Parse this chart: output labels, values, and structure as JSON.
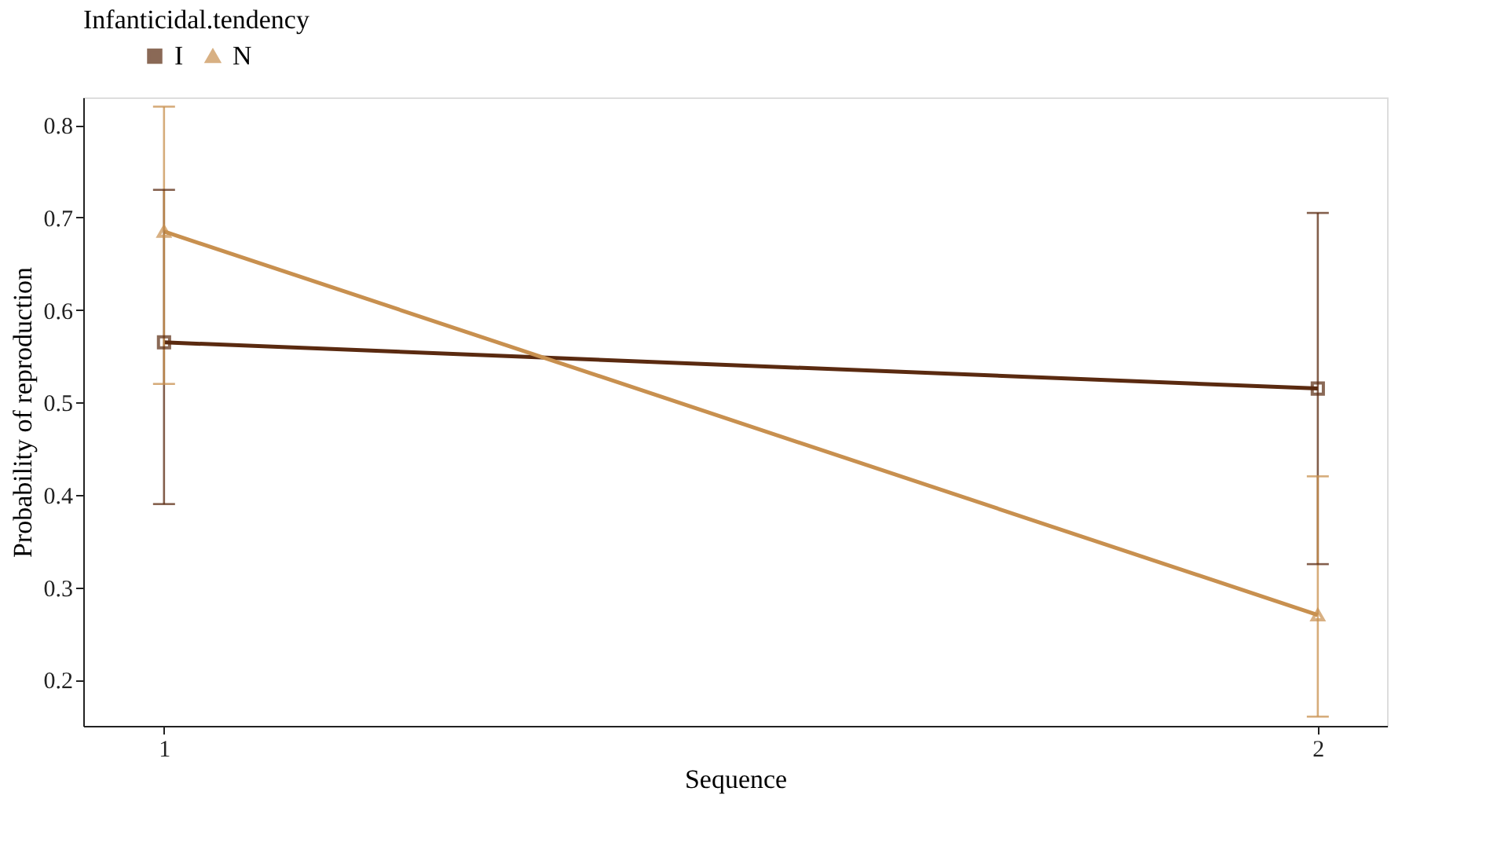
{
  "chart_data": {
    "type": "line",
    "xlabel": "Sequence",
    "ylabel": "Probability of reproduction",
    "legend_title": "Infanticidal.tendency",
    "legend": "top",
    "x": [
      1,
      2
    ],
    "xlim": [
      0.93,
      2.06
    ],
    "xticks": [
      1,
      2
    ],
    "ylim": [
      0.15,
      0.83
    ],
    "yticks": [
      0.2,
      0.3,
      0.4,
      0.5,
      0.6,
      0.7,
      0.8
    ],
    "grid": false,
    "series": [
      {
        "name": "I",
        "color": "#5a2a10",
        "marker": "square",
        "values": [
          0.565,
          0.515
        ],
        "errors": [
          [
            0.39,
            0.73
          ],
          [
            0.325,
            0.705
          ]
        ]
      },
      {
        "name": "N",
        "color": "#c8904f",
        "marker": "triangle",
        "values": [
          0.685,
          0.27
        ],
        "errors": [
          [
            0.52,
            0.82
          ],
          [
            0.16,
            0.42
          ]
        ]
      }
    ]
  }
}
